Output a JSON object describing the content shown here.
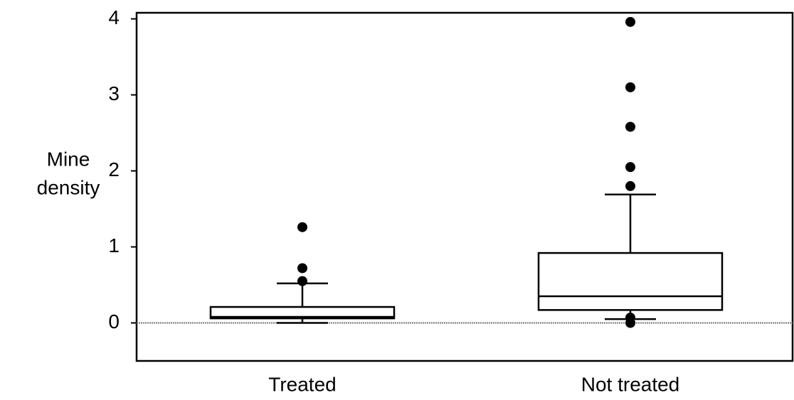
{
  "chart_data": {
    "type": "box",
    "ylabel_lines": [
      "Mine",
      "density"
    ],
    "categories": [
      "Treated",
      "Not treated"
    ],
    "boxes": [
      {
        "whisker_low": 0,
        "q1": 0.06,
        "median": 0.08,
        "q3": 0.21,
        "whisker_high": 0.52,
        "outliers": [
          1.26,
          0.72,
          0.55
        ]
      },
      {
        "whisker_low": 0.05,
        "q1": 0.17,
        "median": 0.35,
        "q3": 0.92,
        "whisker_high": 1.69,
        "outliers": [
          3.96,
          3.1,
          2.58,
          2.05,
          1.8,
          0.07,
          0
        ]
      }
    ],
    "ylim": [
      -0.5,
      4.08
    ],
    "yticks": [
      0,
      1,
      2,
      3,
      4
    ],
    "reference_line": 0,
    "color": "#000000"
  }
}
